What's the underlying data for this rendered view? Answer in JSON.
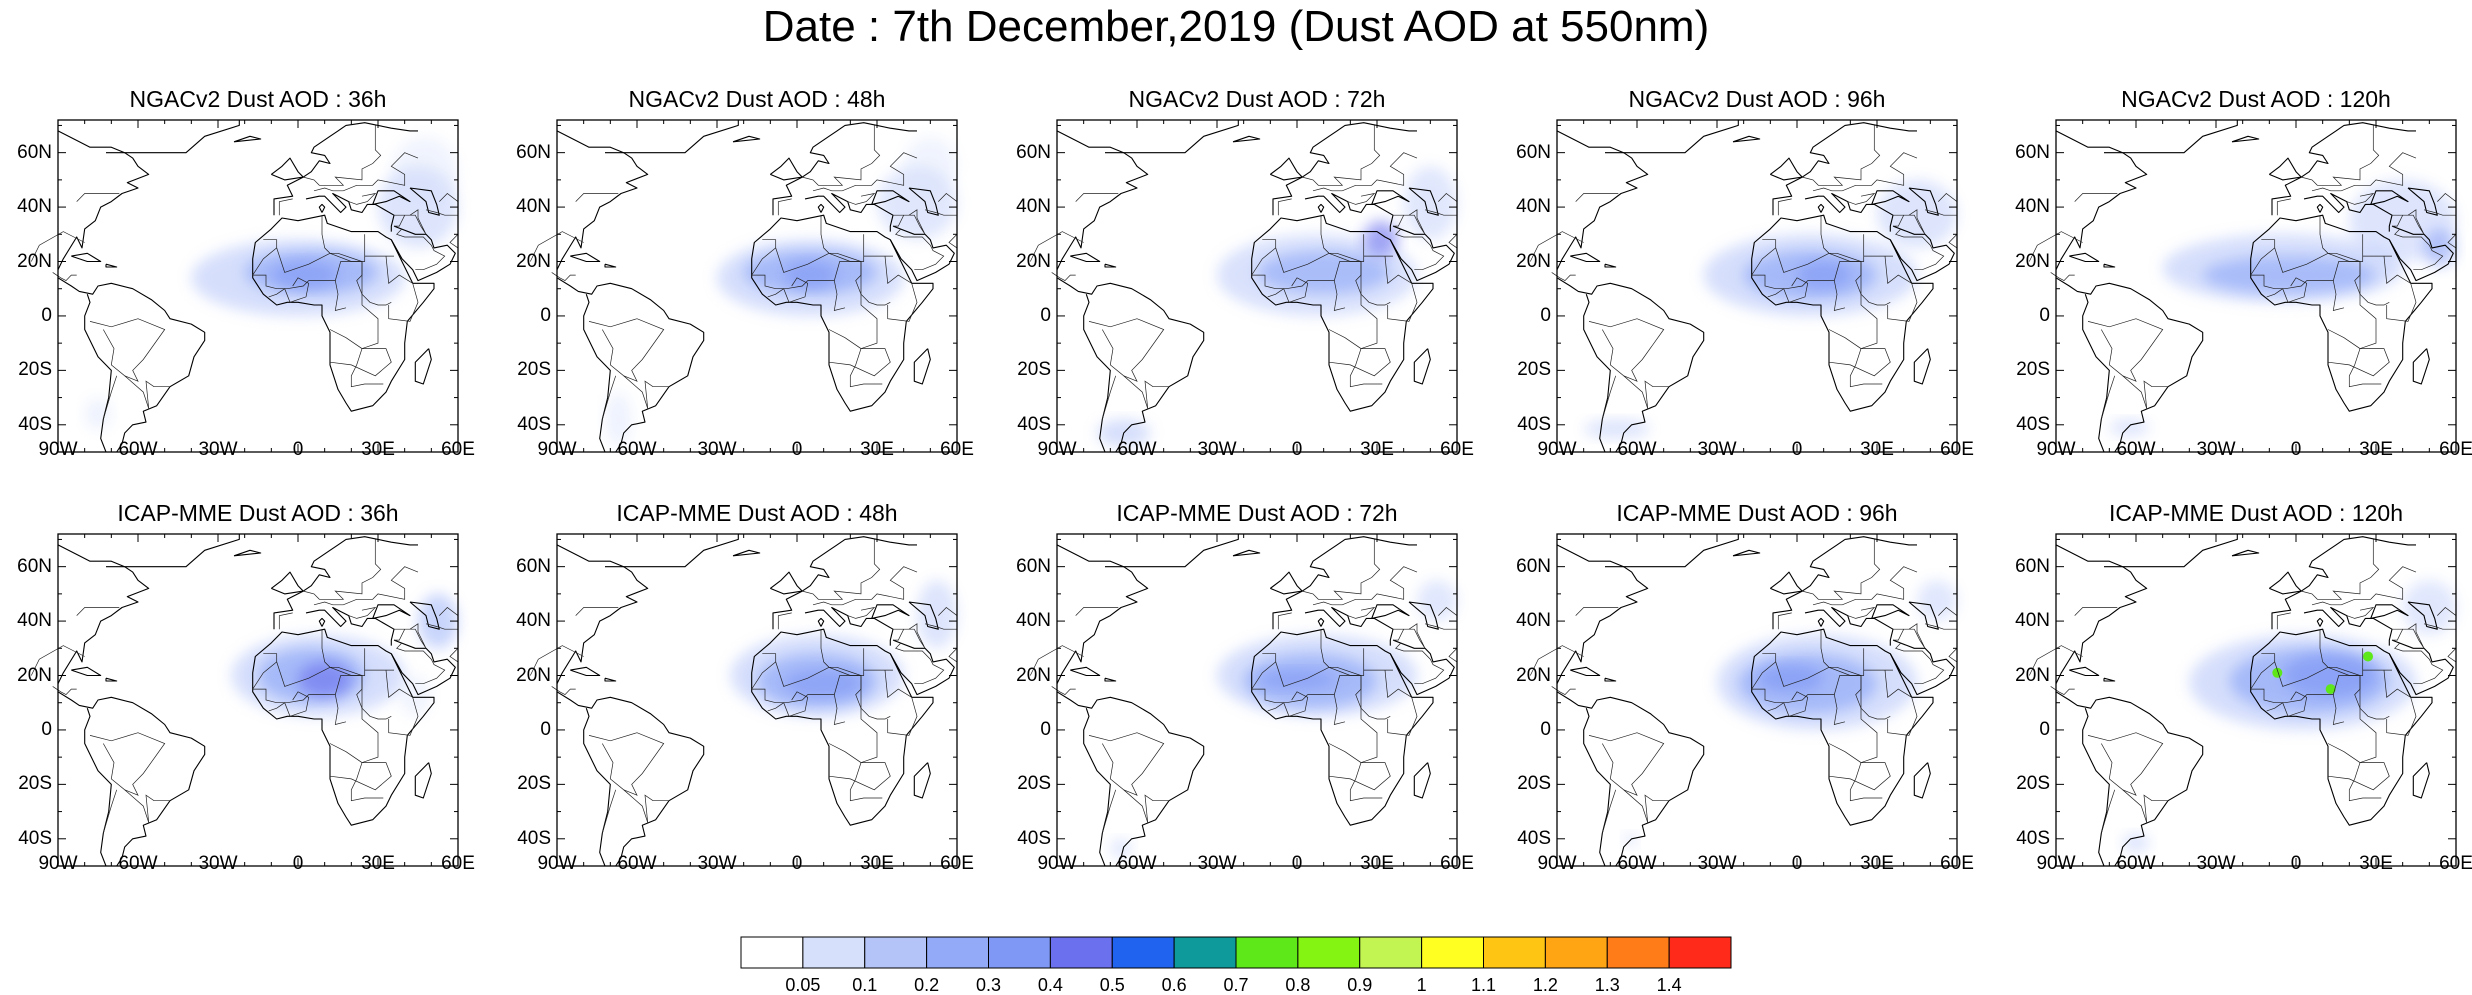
{
  "title": "Date : 7th December,2019 (Dust AOD at 550nm)",
  "lat_labels": [
    "60N",
    "40N",
    "20N",
    "0",
    "20S",
    "40S"
  ],
  "lat_values": [
    60,
    40,
    20,
    0,
    -20,
    -40
  ],
  "lon_labels": [
    "90W",
    "60W",
    "30W",
    "0",
    "30E",
    "60E"
  ],
  "lon_values": [
    -90,
    -60,
    -30,
    0,
    30,
    60
  ],
  "map_extent": {
    "lon": [
      -90,
      60
    ],
    "lat": [
      -50,
      72
    ]
  },
  "panels": [
    {
      "title": "NGACv2 Dust AOD : 36h"
    },
    {
      "title": "NGACv2 Dust AOD : 48h"
    },
    {
      "title": "NGACv2 Dust AOD : 72h"
    },
    {
      "title": "NGACv2 Dust AOD : 96h"
    },
    {
      "title": "NGACv2 Dust AOD : 120h"
    },
    {
      "title": "ICAP-MME Dust AOD : 36h"
    },
    {
      "title": "ICAP-MME Dust AOD : 48h"
    },
    {
      "title": "ICAP-MME Dust AOD : 72h"
    },
    {
      "title": "ICAP-MME Dust AOD : 96h"
    },
    {
      "title": "ICAP-MME Dust AOD : 120h"
    }
  ],
  "colorbar": {
    "labels": [
      "0.05",
      "0.1",
      "0.2",
      "0.3",
      "0.4",
      "0.5",
      "0.6",
      "0.7",
      "0.8",
      "0.9",
      "1",
      "1.1",
      "1.2",
      "1.3",
      "1.4"
    ],
    "colors": [
      "#ffffff",
      "#d6e0fb",
      "#b4c4f9",
      "#92aaf8",
      "#7f97f5",
      "#6b70ee",
      "#1f63ee",
      "#0e9a9a",
      "#5ee81a",
      "#84f413",
      "#c2f552",
      "#ffff22",
      "#ffc513",
      "#ffa514",
      "#ff7c19",
      "#ff2a19"
    ]
  }
}
